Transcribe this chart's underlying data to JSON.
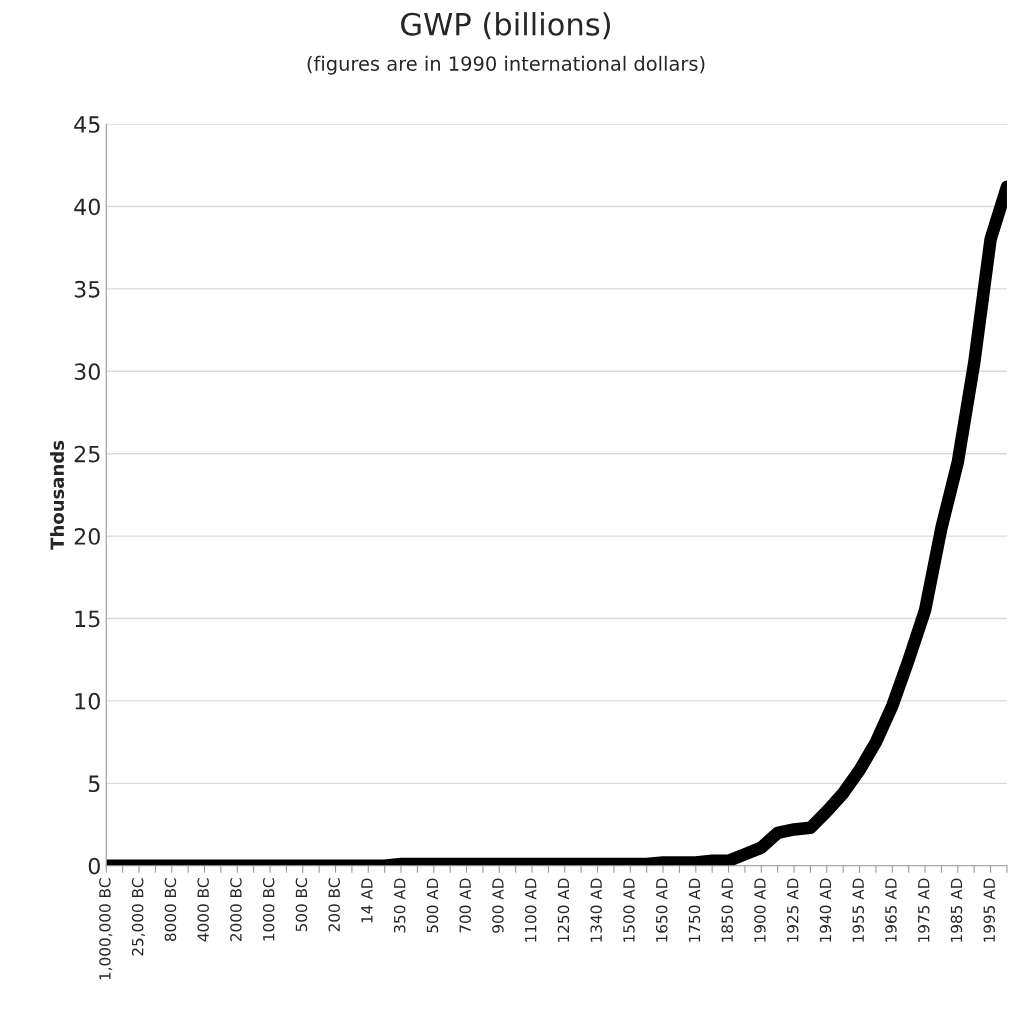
{
  "chart_data": {
    "type": "line",
    "title": "GWP (billions)",
    "subtitle": "(figures are in 1990 international dollars)",
    "ylabel": "Thousands",
    "categories": [
      "1,000,000 BC",
      null,
      "25,000 BC",
      null,
      "8000 BC",
      null,
      "4000 BC",
      null,
      "2000 BC",
      null,
      "1000 BC",
      null,
      "500 BC",
      null,
      "200 BC",
      null,
      "14 AD",
      null,
      "350 AD",
      null,
      "500 AD",
      null,
      "700 AD",
      null,
      "900 AD",
      null,
      "1100 AD",
      null,
      "1250 AD",
      null,
      "1340 AD",
      null,
      "1500 AD",
      null,
      "1650 AD",
      null,
      "1750 AD",
      null,
      "1850 AD",
      null,
      "1900 AD",
      null,
      "1925 AD",
      null,
      "1940 AD",
      null,
      "1955 AD",
      null,
      "1965 AD",
      null,
      "1975 AD",
      null,
      "1985 AD",
      null,
      "1995 AD",
      null
    ],
    "series": [
      {
        "color": "#000000",
        "values": [
          0,
          0,
          0,
          0,
          0,
          0,
          0,
          0,
          0,
          0,
          0,
          0,
          0,
          0,
          0,
          0,
          0,
          0,
          0.1,
          0.1,
          0.1,
          0.1,
          0.1,
          0.1,
          0.1,
          0.1,
          0.1,
          0.1,
          0.1,
          0.1,
          0.1,
          0.1,
          0.1,
          0.1,
          0.2,
          0.2,
          0.2,
          0.3,
          0.3,
          0.7,
          1.1,
          2.0,
          2.2,
          2.3,
          3.3,
          4.4,
          5.8,
          7.5,
          9.7,
          12.5,
          15.5,
          20.5,
          24.5,
          30.5,
          38,
          41.2
        ]
      }
    ],
    "ylim": [
      0,
      45
    ],
    "yticks": [
      0,
      5,
      10,
      15,
      20,
      25,
      30,
      35,
      40,
      45
    ],
    "grid": "y",
    "legend": false,
    "marker": "none",
    "line_style": "solid"
  }
}
